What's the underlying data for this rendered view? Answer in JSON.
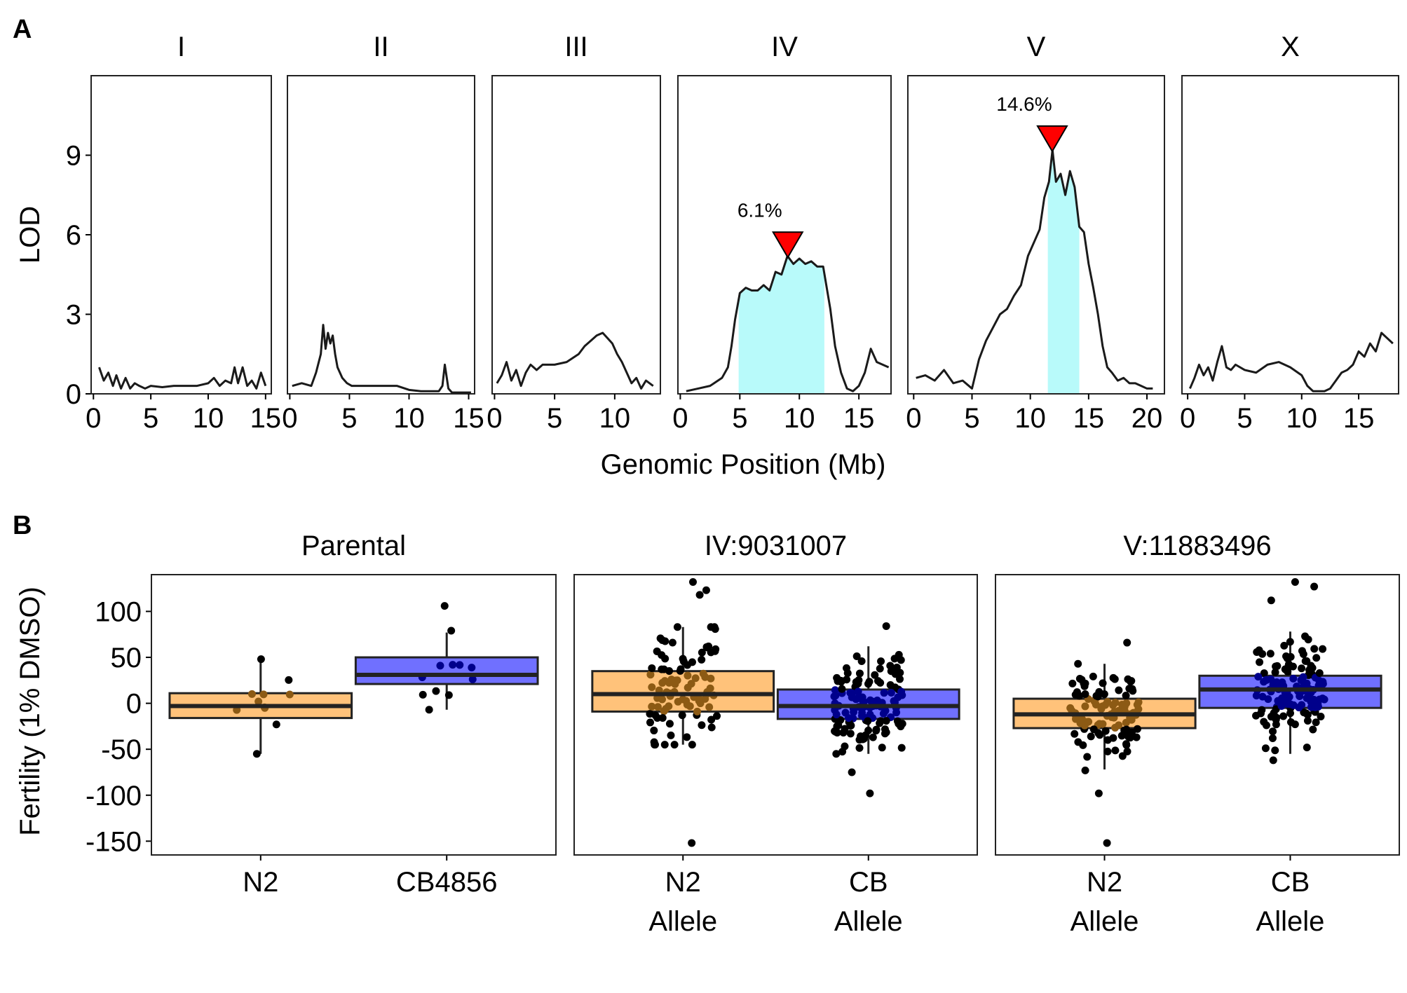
{
  "panels": {
    "a": {
      "letter": "A"
    },
    "b": {
      "letter": "B"
    }
  },
  "chart_data": [
    {
      "type": "line",
      "panel": "A",
      "xlabel": "Genomic Position (Mb)",
      "ylabel": "LOD",
      "ylim": [
        0,
        12
      ],
      "yticks": [
        0,
        3,
        6,
        9
      ],
      "grid": false,
      "facets": [
        {
          "name": "I",
          "xlim": [
            -0.2,
            15.5
          ],
          "xticks": [
            "0",
            "5",
            "10",
            "15"
          ],
          "x": [
            0.5,
            0.9,
            1.3,
            1.7,
            2.0,
            2.4,
            2.8,
            3.2,
            3.6,
            4.0,
            4.5,
            5.0,
            6.0,
            7.0,
            8.0,
            9.0,
            10.0,
            10.5,
            11.0,
            11.5,
            12.0,
            12.3,
            12.6,
            13.0,
            13.4,
            13.8,
            14.2,
            14.6,
            15.0
          ],
          "y": [
            1.0,
            0.5,
            0.8,
            0.3,
            0.7,
            0.2,
            0.6,
            0.2,
            0.4,
            0.3,
            0.2,
            0.3,
            0.25,
            0.3,
            0.3,
            0.3,
            0.4,
            0.6,
            0.3,
            0.5,
            0.4,
            1.0,
            0.4,
            1.0,
            0.3,
            0.5,
            0.2,
            0.8,
            0.3
          ],
          "peak": null,
          "ci": null
        },
        {
          "name": "II",
          "xlim": [
            -0.2,
            15.5
          ],
          "xticks": [
            "0",
            "5",
            "10",
            "15"
          ],
          "x": [
            0.2,
            1.0,
            1.8,
            2.2,
            2.6,
            2.8,
            3.0,
            3.2,
            3.4,
            3.6,
            3.8,
            4.0,
            4.4,
            4.8,
            5.2,
            6.0,
            7.5,
            9.0,
            10.0,
            11.0,
            12.0,
            12.5,
            12.8,
            13.0,
            13.3,
            13.6,
            14.0,
            14.6,
            15.2
          ],
          "y": [
            0.3,
            0.4,
            0.3,
            0.8,
            1.5,
            2.6,
            1.7,
            2.3,
            1.9,
            2.2,
            1.5,
            1.0,
            0.6,
            0.4,
            0.3,
            0.3,
            0.3,
            0.3,
            0.15,
            0.1,
            0.1,
            0.1,
            0.3,
            1.1,
            0.2,
            0.05,
            0.05,
            0.05,
            0.05
          ],
          "peak": null,
          "ci": null
        },
        {
          "name": "III",
          "xlim": [
            -0.2,
            13.8
          ],
          "xticks": [
            "0",
            "5",
            "10"
          ],
          "x": [
            0.2,
            0.6,
            1.0,
            1.4,
            1.8,
            2.2,
            2.6,
            3.0,
            3.5,
            4.0,
            5.0,
            6.0,
            7.0,
            7.5,
            8.0,
            8.5,
            9.0,
            9.4,
            9.8,
            10.2,
            10.6,
            11.0,
            11.4,
            11.8,
            12.2,
            12.6,
            13.2
          ],
          "y": [
            0.4,
            0.7,
            1.2,
            0.5,
            0.9,
            0.3,
            0.8,
            1.1,
            0.9,
            1.1,
            1.1,
            1.2,
            1.5,
            1.8,
            2.0,
            2.2,
            2.3,
            2.1,
            1.9,
            1.5,
            1.2,
            0.8,
            0.4,
            0.6,
            0.2,
            0.5,
            0.3
          ],
          "peak": null,
          "ci": null
        },
        {
          "name": "IV",
          "xlim": [
            -0.2,
            17.7
          ],
          "xticks": [
            "0",
            "5",
            "10",
            "15"
          ],
          "x": [
            0.5,
            1.5,
            2.5,
            3.5,
            4.0,
            4.3,
            4.6,
            5.0,
            5.5,
            6.0,
            6.5,
            7.0,
            7.5,
            8.0,
            8.5,
            9.0,
            9.5,
            10.0,
            10.5,
            11.0,
            11.5,
            12.0,
            12.3,
            12.6,
            13.0,
            13.5,
            14.0,
            14.5,
            15.0,
            15.5,
            16.0,
            16.5,
            17.0,
            17.5
          ],
          "y": [
            0.1,
            0.2,
            0.3,
            0.6,
            1.0,
            1.8,
            2.8,
            3.8,
            4.0,
            3.9,
            3.9,
            4.1,
            3.9,
            4.6,
            4.5,
            5.2,
            4.9,
            5.1,
            4.9,
            5.0,
            4.8,
            4.8,
            4.0,
            3.2,
            1.8,
            0.8,
            0.2,
            0.1,
            0.3,
            0.8,
            1.7,
            1.2,
            1.1,
            1.0
          ],
          "peak": {
            "x": 9.03,
            "y": 5.2,
            "label": "6.1%"
          },
          "ci": [
            4.9,
            12.1
          ]
        },
        {
          "name": "V",
          "xlim": [
            -0.5,
            21.5
          ],
          "xticks": [
            "0",
            "5",
            "10",
            "15",
            "20"
          ],
          "x": [
            0.2,
            1.0,
            1.8,
            2.6,
            3.4,
            4.2,
            5.0,
            5.6,
            6.2,
            6.8,
            7.4,
            8.0,
            8.6,
            9.2,
            9.8,
            10.4,
            10.8,
            11.2,
            11.6,
            11.9,
            12.2,
            12.6,
            13.0,
            13.4,
            13.8,
            14.2,
            14.6,
            15.0,
            15.4,
            15.8,
            16.2,
            16.6,
            17.0,
            17.5,
            18.0,
            18.5,
            19.0,
            19.5,
            20.0,
            20.5
          ],
          "y": [
            0.6,
            0.7,
            0.5,
            0.9,
            0.4,
            0.5,
            0.2,
            1.3,
            2.0,
            2.5,
            3.0,
            3.2,
            3.7,
            4.1,
            5.2,
            5.8,
            6.2,
            7.4,
            8.0,
            9.2,
            8.0,
            8.3,
            7.5,
            8.4,
            7.8,
            6.3,
            6.1,
            4.9,
            4.0,
            3.0,
            1.8,
            1.0,
            0.8,
            0.5,
            0.6,
            0.4,
            0.4,
            0.3,
            0.2,
            0.2
          ],
          "peak": {
            "x": 11.88,
            "y": 9.2,
            "label": "14.6%"
          },
          "ci": [
            11.5,
            14.2
          ]
        },
        {
          "name": "X",
          "xlim": [
            -0.5,
            18.5
          ],
          "xticks": [
            "0",
            "5",
            "10",
            "15"
          ],
          "x": [
            0.2,
            0.6,
            1.0,
            1.4,
            1.8,
            2.2,
            2.6,
            3.0,
            3.4,
            3.8,
            4.2,
            5.0,
            6.0,
            7.0,
            8.0,
            9.0,
            10.0,
            10.5,
            11.0,
            11.5,
            12.0,
            12.5,
            13.0,
            13.5,
            14.0,
            14.5,
            15.0,
            15.5,
            16.0,
            16.5,
            17.0,
            17.5,
            18.0
          ],
          "y": [
            0.2,
            0.6,
            1.1,
            0.7,
            1.0,
            0.5,
            1.2,
            1.8,
            1.0,
            0.9,
            1.1,
            0.9,
            0.8,
            1.1,
            1.2,
            1.0,
            0.7,
            0.3,
            0.1,
            0.1,
            0.1,
            0.2,
            0.5,
            0.8,
            0.9,
            1.1,
            1.6,
            1.4,
            1.9,
            1.6,
            2.3,
            2.1,
            1.9
          ],
          "peak": null,
          "ci": null
        }
      ],
      "colors": {
        "line": "#1a1a1a",
        "ci": "#b8fafa",
        "peak": "#ff0000"
      }
    },
    {
      "type": "box",
      "panel": "B",
      "ylabel": "Fertility (1% DMSO)",
      "ylim": [
        -165,
        140
      ],
      "yticks": [
        100,
        50,
        0,
        -50,
        -100,
        -150
      ],
      "grid": false,
      "facets": [
        {
          "name": "Parental",
          "groups": [
            {
              "label": [
                "N2"
              ],
              "color": "#ffc27a",
              "dot_color": "#8c5a14",
              "min": -55,
              "q1": -16,
              "median": -3,
              "q3": 11,
              "max": 48,
              "n_points": 9,
              "extremes": [
                48,
                -55
              ]
            },
            {
              "label": [
                "CB4856"
              ],
              "color": "#7070ff",
              "dot_color": "#00008b",
              "min": -7,
              "q1": 21,
              "median": 31,
              "q3": 50,
              "max": 77,
              "n_points": 9,
              "extremes": [
                106,
                79,
                -7
              ]
            }
          ]
        },
        {
          "name": "IV:9031007",
          "groups": [
            {
              "label": [
                "N2",
                "Allele"
              ],
              "color": "#ffc27a",
              "dot_color": "#8c5a14",
              "min": -45,
              "q1": -9,
              "median": 10,
              "q3": 35,
              "max": 83,
              "n_points": 95,
              "extremes": [
                132,
                123,
                118,
                -152
              ]
            },
            {
              "label": [
                "CB",
                "Allele"
              ],
              "color": "#7070ff",
              "dot_color": "#00008b",
              "min": -55,
              "q1": -17,
              "median": -3,
              "q3": 15,
              "max": 62,
              "n_points": 130,
              "extremes": [
                84,
                -98,
                -75
              ]
            }
          ]
        },
        {
          "name": "V:11883496",
          "groups": [
            {
              "label": [
                "N2",
                "Allele"
              ],
              "color": "#ffc27a",
              "dot_color": "#8c5a14",
              "min": -72,
              "q1": -27,
              "median": -12,
              "q3": 5,
              "max": 43,
              "n_points": 105,
              "extremes": [
                66,
                -98,
                -152,
                -73
              ]
            },
            {
              "label": [
                "CB",
                "Allele"
              ],
              "color": "#7070ff",
              "dot_color": "#00008b",
              "min": -55,
              "q1": -5,
              "median": 15,
              "q3": 30,
              "max": 78,
              "n_points": 125,
              "extremes": [
                132,
                127,
                112,
                -62
              ]
            }
          ]
        }
      ]
    }
  ]
}
